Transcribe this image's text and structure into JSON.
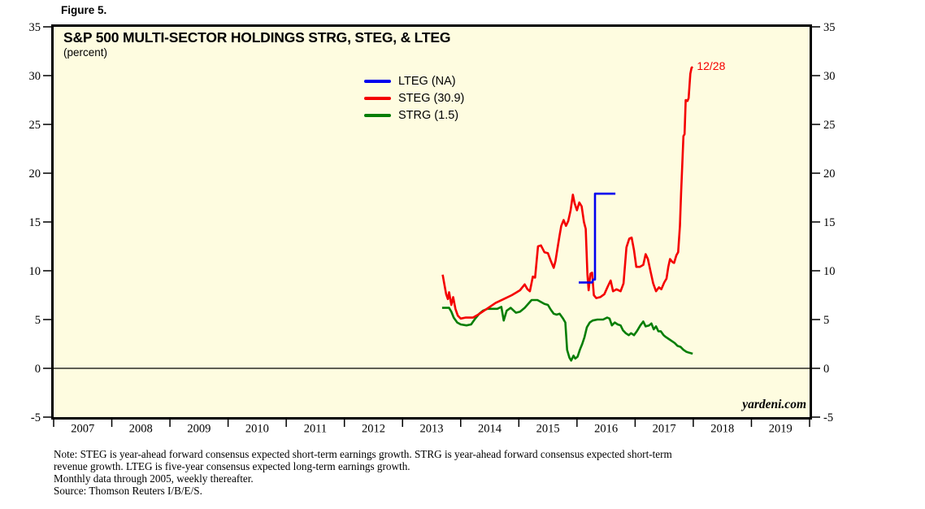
{
  "figure_label": "Figure 5.",
  "notes": {
    "lines": [
      "Note: STEG is year-ahead forward consensus expected short-term earnings growth. STRG is year-ahead forward consensus expected short-term",
      "revenue growth. LTEG is five-year consensus expected long-term earnings growth.",
      "Monthly data through 2005, weekly thereafter.",
      "Source: Thomson Reuters I/B/E/S."
    ]
  },
  "colors": {
    "plot_bg": "#FEFCE0",
    "frame": "#000000",
    "lteg_blue": "#0000EE",
    "steg_red": "#F40000",
    "strg_green": "#057E05",
    "annotation_red": "#F40000"
  },
  "chart_data": {
    "type": "line",
    "title": "S&P 500 MULTI-SECTOR HOLDINGS STRG, STEG, & LTEG",
    "subtitle": "(percent)",
    "ylabel": "(percent)",
    "xlabel": "",
    "watermark": "yardeni.com",
    "grid": false,
    "zero_line": true,
    "xlim": [
      2007,
      2020
    ],
    "ylim": [
      -5,
      35
    ],
    "y_ticks": [
      -5,
      0,
      5,
      10,
      15,
      20,
      25,
      30,
      35
    ],
    "x_year_labels": [
      2007,
      2008,
      2009,
      2010,
      2011,
      2012,
      2013,
      2014,
      2015,
      2016,
      2017,
      2018,
      2019
    ],
    "legend_position": "top-center",
    "annotation": {
      "text": "12/28",
      "color": "#F40000",
      "x_year": 2018.02,
      "y_value": 31.1
    },
    "series": [
      {
        "name": "LTEG",
        "legend_label": "LTEG (NA)",
        "color": "#0000EE",
        "points": [
          [
            2016.03,
            8.8
          ],
          [
            2016.26,
            8.8
          ],
          [
            2016.28,
            9.1
          ],
          [
            2016.31,
            9.1
          ],
          [
            2016.31,
            17.9
          ],
          [
            2016.66,
            17.9
          ]
        ]
      },
      {
        "name": "STEG",
        "legend_label": "STEG (30.9)",
        "color": "#F40000",
        "points": [
          [
            2013.69,
            9.6
          ],
          [
            2013.72,
            8.6
          ],
          [
            2013.75,
            7.6
          ],
          [
            2013.78,
            7.1
          ],
          [
            2013.8,
            7.8
          ],
          [
            2013.84,
            6.5
          ],
          [
            2013.87,
            7.3
          ],
          [
            2013.91,
            6.1
          ],
          [
            2013.95,
            5.4
          ],
          [
            2014.0,
            5.1
          ],
          [
            2014.08,
            5.2
          ],
          [
            2014.21,
            5.2
          ],
          [
            2014.3,
            5.5
          ],
          [
            2014.4,
            5.9
          ],
          [
            2014.5,
            6.3
          ],
          [
            2014.6,
            6.7
          ],
          [
            2014.74,
            7.1
          ],
          [
            2014.88,
            7.5
          ],
          [
            2015.02,
            8.0
          ],
          [
            2015.1,
            8.6
          ],
          [
            2015.15,
            8.1
          ],
          [
            2015.19,
            7.9
          ],
          [
            2015.24,
            9.4
          ],
          [
            2015.28,
            9.3
          ],
          [
            2015.33,
            12.5
          ],
          [
            2015.38,
            12.6
          ],
          [
            2015.44,
            11.9
          ],
          [
            2015.5,
            11.8
          ],
          [
            2015.55,
            11.0
          ],
          [
            2015.6,
            10.3
          ],
          [
            2015.63,
            11.0
          ],
          [
            2015.66,
            12.1
          ],
          [
            2015.7,
            13.6
          ],
          [
            2015.73,
            14.6
          ],
          [
            2015.77,
            15.2
          ],
          [
            2015.81,
            14.6
          ],
          [
            2015.85,
            15.1
          ],
          [
            2015.89,
            16.2
          ],
          [
            2015.93,
            17.8
          ],
          [
            2015.96,
            16.9
          ],
          [
            2016.0,
            16.2
          ],
          [
            2016.04,
            17.0
          ],
          [
            2016.08,
            16.6
          ],
          [
            2016.12,
            15.0
          ],
          [
            2016.15,
            14.3
          ],
          [
            2016.18,
            9.6
          ],
          [
            2016.2,
            8.0
          ],
          [
            2016.23,
            9.7
          ],
          [
            2016.26,
            9.8
          ],
          [
            2016.29,
            7.5
          ],
          [
            2016.33,
            7.2
          ],
          [
            2016.4,
            7.3
          ],
          [
            2016.47,
            7.6
          ],
          [
            2016.53,
            8.4
          ],
          [
            2016.58,
            9.0
          ],
          [
            2016.62,
            7.9
          ],
          [
            2016.68,
            8.1
          ],
          [
            2016.75,
            7.9
          ],
          [
            2016.8,
            8.7
          ],
          [
            2016.85,
            12.4
          ],
          [
            2016.9,
            13.3
          ],
          [
            2016.94,
            13.4
          ],
          [
            2016.98,
            12.1
          ],
          [
            2017.02,
            10.4
          ],
          [
            2017.08,
            10.4
          ],
          [
            2017.14,
            10.6
          ],
          [
            2017.18,
            11.7
          ],
          [
            2017.22,
            11.2
          ],
          [
            2017.27,
            9.8
          ],
          [
            2017.31,
            8.7
          ],
          [
            2017.36,
            7.9
          ],
          [
            2017.41,
            8.3
          ],
          [
            2017.45,
            8.1
          ],
          [
            2017.5,
            8.8
          ],
          [
            2017.54,
            9.2
          ],
          [
            2017.57,
            10.4
          ],
          [
            2017.6,
            11.2
          ],
          [
            2017.64,
            10.9
          ],
          [
            2017.67,
            10.8
          ],
          [
            2017.71,
            11.6
          ],
          [
            2017.74,
            11.9
          ],
          [
            2017.77,
            14.6
          ],
          [
            2017.79,
            17.9
          ],
          [
            2017.81,
            20.7
          ],
          [
            2017.83,
            23.8
          ],
          [
            2017.85,
            24.0
          ],
          [
            2017.87,
            27.5
          ],
          [
            2017.9,
            27.4
          ],
          [
            2017.92,
            27.7
          ],
          [
            2017.95,
            30.2
          ],
          [
            2017.97,
            30.8
          ],
          [
            2017.99,
            30.9
          ]
        ]
      },
      {
        "name": "STRG",
        "legend_label": "STRG (1.5)",
        "color": "#057E05",
        "points": [
          [
            2013.68,
            6.2
          ],
          [
            2013.8,
            6.2
          ],
          [
            2013.84,
            5.8
          ],
          [
            2013.88,
            5.2
          ],
          [
            2013.94,
            4.7
          ],
          [
            2014.0,
            4.5
          ],
          [
            2014.1,
            4.4
          ],
          [
            2014.18,
            4.5
          ],
          [
            2014.25,
            5.1
          ],
          [
            2014.32,
            5.6
          ],
          [
            2014.38,
            5.9
          ],
          [
            2014.46,
            6.1
          ],
          [
            2014.56,
            6.1
          ],
          [
            2014.63,
            6.1
          ],
          [
            2014.7,
            6.3
          ],
          [
            2014.74,
            4.9
          ],
          [
            2014.79,
            5.9
          ],
          [
            2014.86,
            6.2
          ],
          [
            2014.95,
            5.7
          ],
          [
            2015.02,
            5.8
          ],
          [
            2015.1,
            6.2
          ],
          [
            2015.16,
            6.6
          ],
          [
            2015.22,
            7.0
          ],
          [
            2015.32,
            7.0
          ],
          [
            2015.38,
            6.8
          ],
          [
            2015.44,
            6.6
          ],
          [
            2015.5,
            6.5
          ],
          [
            2015.55,
            6.0
          ],
          [
            2015.6,
            5.6
          ],
          [
            2015.65,
            5.5
          ],
          [
            2015.7,
            5.6
          ],
          [
            2015.76,
            5.1
          ],
          [
            2015.8,
            4.7
          ],
          [
            2015.83,
            1.9
          ],
          [
            2015.87,
            1.1
          ],
          [
            2015.9,
            0.8
          ],
          [
            2015.94,
            1.3
          ],
          [
            2015.97,
            1.0
          ],
          [
            2016.01,
            1.2
          ],
          [
            2016.05,
            1.9
          ],
          [
            2016.09,
            2.5
          ],
          [
            2016.13,
            3.2
          ],
          [
            2016.17,
            4.2
          ],
          [
            2016.22,
            4.7
          ],
          [
            2016.27,
            4.9
          ],
          [
            2016.35,
            5.0
          ],
          [
            2016.45,
            5.0
          ],
          [
            2016.52,
            5.2
          ],
          [
            2016.56,
            5.1
          ],
          [
            2016.6,
            4.4
          ],
          [
            2016.65,
            4.7
          ],
          [
            2016.7,
            4.5
          ],
          [
            2016.75,
            4.4
          ],
          [
            2016.79,
            3.9
          ],
          [
            2016.84,
            3.6
          ],
          [
            2016.89,
            3.4
          ],
          [
            2016.93,
            3.6
          ],
          [
            2016.98,
            3.4
          ],
          [
            2017.03,
            3.8
          ],
          [
            2017.09,
            4.4
          ],
          [
            2017.14,
            4.8
          ],
          [
            2017.18,
            4.3
          ],
          [
            2017.24,
            4.4
          ],
          [
            2017.28,
            4.6
          ],
          [
            2017.32,
            4.0
          ],
          [
            2017.36,
            4.3
          ],
          [
            2017.4,
            3.8
          ],
          [
            2017.44,
            3.8
          ],
          [
            2017.49,
            3.4
          ],
          [
            2017.53,
            3.2
          ],
          [
            2017.58,
            3.0
          ],
          [
            2017.63,
            2.8
          ],
          [
            2017.68,
            2.6
          ],
          [
            2017.73,
            2.3
          ],
          [
            2017.78,
            2.2
          ],
          [
            2017.83,
            1.9
          ],
          [
            2017.88,
            1.7
          ],
          [
            2017.93,
            1.6
          ],
          [
            2017.99,
            1.5
          ]
        ]
      }
    ]
  }
}
